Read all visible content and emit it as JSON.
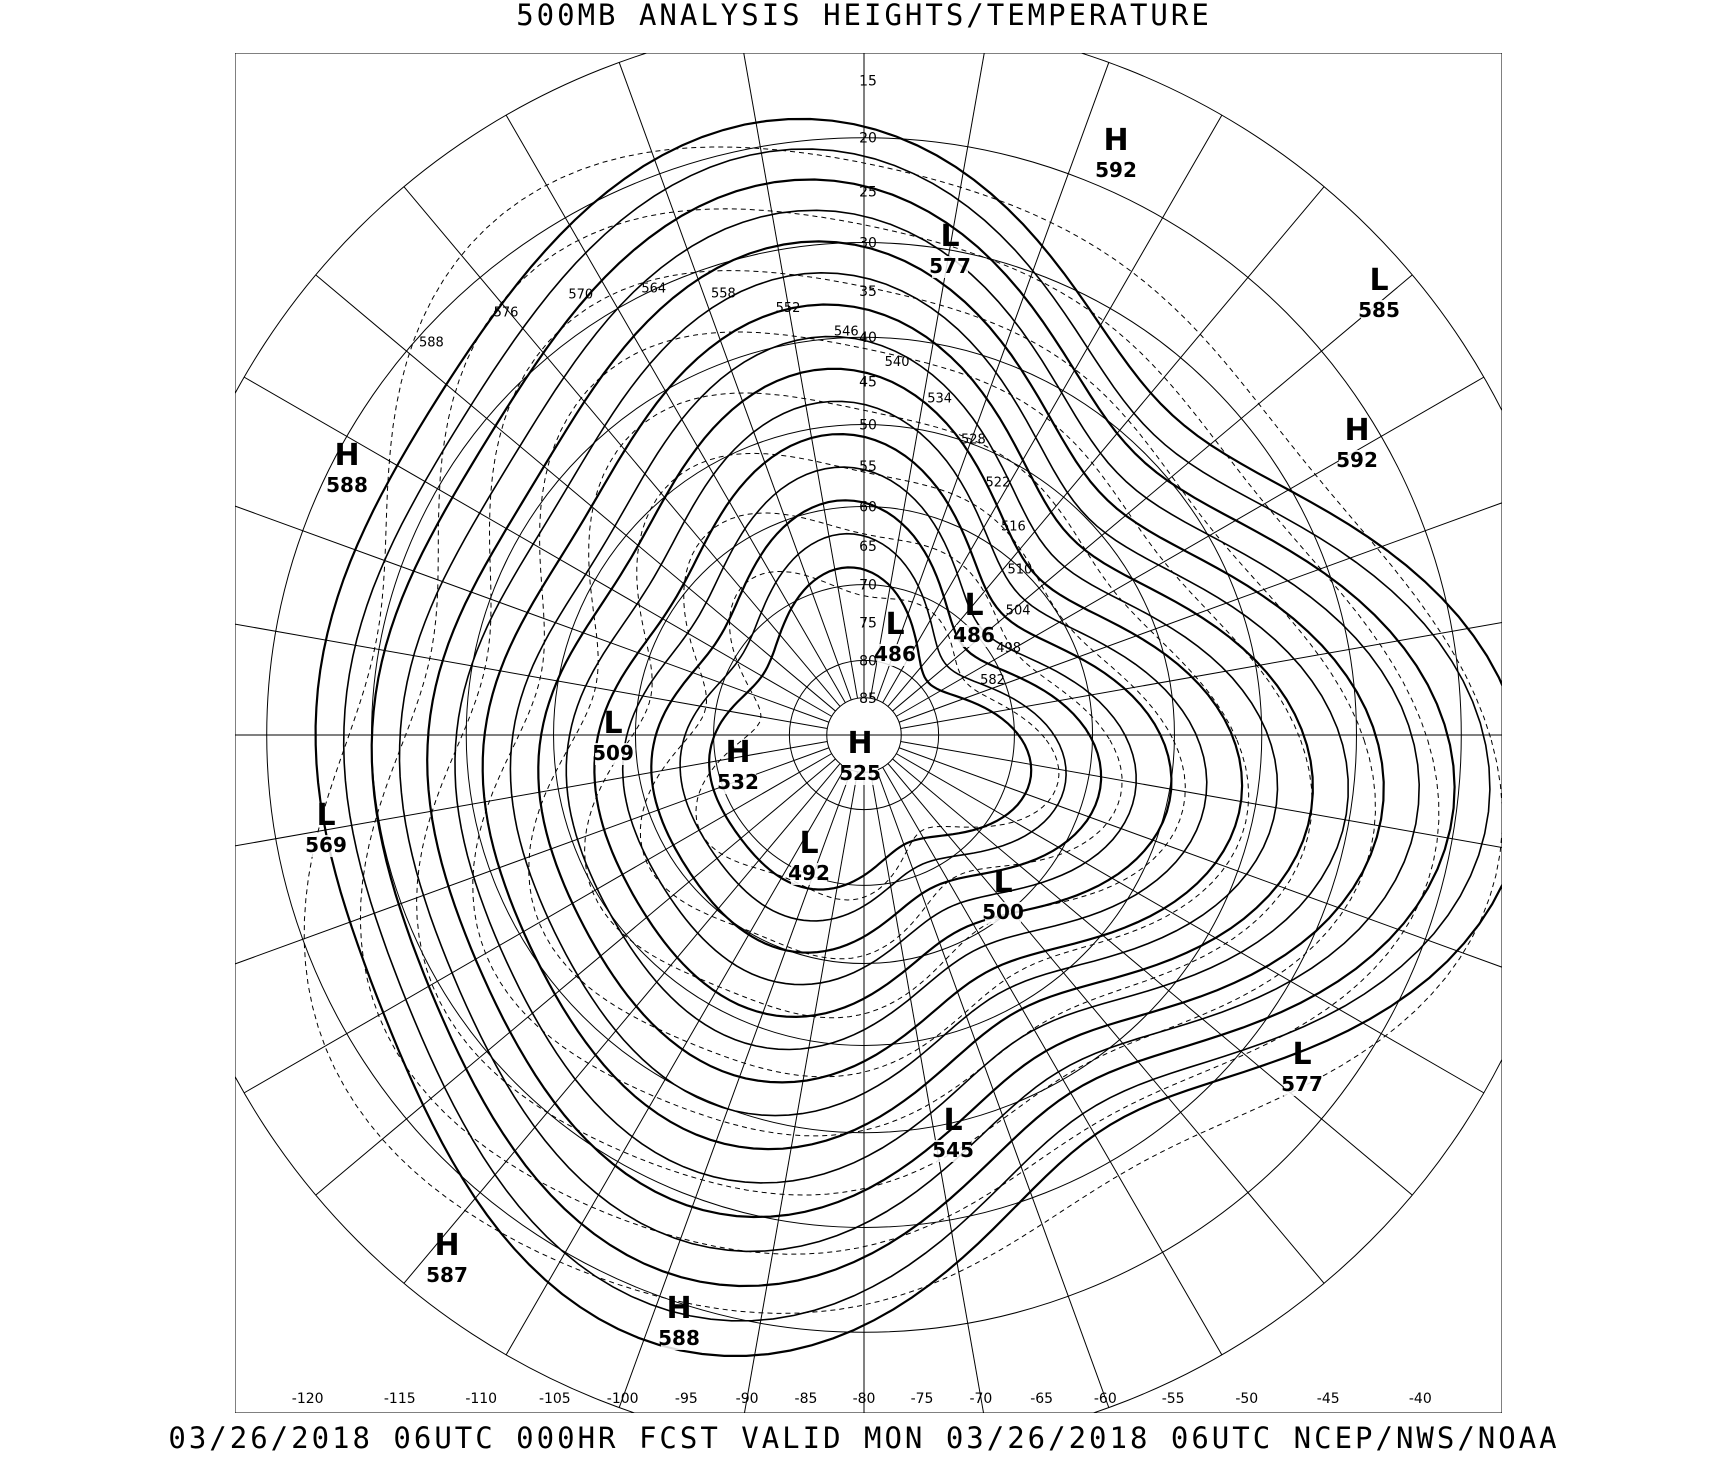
{
  "title": "500MB ANALYSIS  HEIGHTS/TEMPERATURE",
  "footer": "03/26/2018 06UTC 000HR FCST VALID MON 03/26/2018 06UTC  NCEP/NWS/NOAA",
  "map": {
    "projection": "north polar stereographic",
    "latitude_labels": [
      "15",
      "20",
      "25",
      "30",
      "35",
      "40",
      "45",
      "50",
      "55",
      "60",
      "65",
      "70",
      "75",
      "80",
      "85"
    ],
    "longitude_labels": [
      "-120",
      "-115",
      "-110",
      "-105",
      "-100",
      "-95",
      "-90",
      "-85",
      "-80",
      "-75",
      "-70",
      "-65",
      "-60",
      "-55",
      "-50",
      "-45",
      "-40"
    ],
    "pressure_centers": [
      {
        "type": "H",
        "value": "592"
      },
      {
        "type": "L",
        "value": "577"
      },
      {
        "type": "L",
        "value": "585"
      },
      {
        "type": "H",
        "value": "588"
      },
      {
        "type": "H",
        "value": "592"
      },
      {
        "type": "L",
        "value": "486"
      },
      {
        "type": "L",
        "value": "486"
      },
      {
        "type": "L",
        "value": "509"
      },
      {
        "type": "H",
        "value": "532"
      },
      {
        "type": "H",
        "value": "525"
      },
      {
        "type": "L",
        "value": "569"
      },
      {
        "type": "L",
        "value": "492"
      },
      {
        "type": "L",
        "value": "500"
      },
      {
        "type": "L",
        "value": "577"
      },
      {
        "type": "L",
        "value": "545"
      },
      {
        "type": "H",
        "value": "587"
      },
      {
        "type": "H",
        "value": "588"
      }
    ],
    "contour_labels": [
      "588",
      "576",
      "570",
      "564",
      "558",
      "552",
      "546",
      "540",
      "534",
      "528",
      "522",
      "516",
      "510",
      "504",
      "498",
      "582"
    ]
  }
}
